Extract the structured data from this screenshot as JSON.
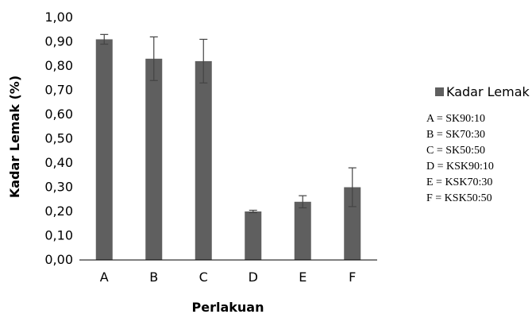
{
  "chart_data": {
    "type": "bar",
    "categories": [
      "A",
      "B",
      "C",
      "D",
      "E",
      "F"
    ],
    "series": [
      {
        "name": "Kadar Lemak",
        "values": [
          0.91,
          0.83,
          0.82,
          0.2,
          0.24,
          0.3
        ],
        "error": [
          0.02,
          0.09,
          0.09,
          0.005,
          0.025,
          0.08
        ]
      }
    ],
    "xlabel": "Perlakuan",
    "ylabel": "Kadar Lemak (%)",
    "ylim": [
      0,
      1.0
    ],
    "yticks": [
      "0,00",
      "0,10",
      "0,20",
      "0,30",
      "0,40",
      "0,50",
      "0,60",
      "0,70",
      "0,80",
      "0,90",
      "1,00"
    ],
    "grid": false,
    "legend_position": "right",
    "bar_color": "#5f5f5f",
    "notes": [
      "A = SK90:10",
      "B = SK70:30",
      "C = SK50:50",
      "D = KSK90:10",
      "E = KSK70:30",
      "F = KSK50:50"
    ]
  }
}
